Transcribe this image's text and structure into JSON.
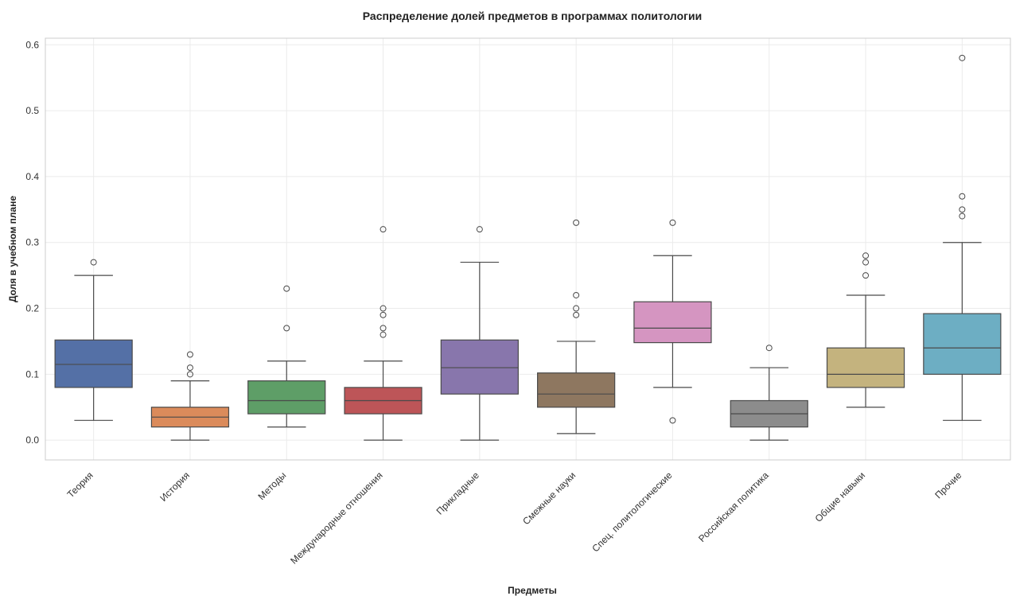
{
  "chart_data": {
    "type": "box",
    "title": "Распределение долей предметов в программах политологии",
    "xlabel": "Предметы",
    "ylabel": "Доля в учебном плане",
    "ylim": [
      -0.03,
      0.61
    ],
    "yticks": [
      0.0,
      0.1,
      0.2,
      0.3,
      0.4,
      0.5,
      0.6
    ],
    "ytick_labels": [
      "0.0",
      "0.1",
      "0.2",
      "0.3",
      "0.4",
      "0.5",
      "0.6"
    ],
    "grid": true,
    "categories": [
      "Теория",
      "История",
      "Методы",
      "Международные отношения",
      "Прикладные",
      "Смежные науки",
      "Спец. политологические",
      "Российская политика",
      "Общие навыки",
      "Прочие"
    ],
    "boxes": [
      {
        "category": "Теория",
        "whisker_low": 0.03,
        "q1": 0.08,
        "median": 0.115,
        "q3": 0.152,
        "whisker_high": 0.25,
        "outliers": [
          0.27
        ],
        "color": "#5470a6"
      },
      {
        "category": "История",
        "whisker_low": 0.0,
        "q1": 0.02,
        "median": 0.035,
        "q3": 0.05,
        "whisker_high": 0.09,
        "outliers": [
          0.1,
          0.11,
          0.13
        ],
        "color": "#db8b5b"
      },
      {
        "category": "Методы",
        "whisker_low": 0.02,
        "q1": 0.04,
        "median": 0.06,
        "q3": 0.09,
        "whisker_high": 0.12,
        "outliers": [
          0.17,
          0.23
        ],
        "color": "#5e9e67"
      },
      {
        "category": "Международные отношения",
        "whisker_low": 0.0,
        "q1": 0.04,
        "median": 0.06,
        "q3": 0.08,
        "whisker_high": 0.12,
        "outliers": [
          0.16,
          0.17,
          0.19,
          0.2,
          0.32
        ],
        "color": "#bd5558"
      },
      {
        "category": "Прикладные",
        "whisker_low": 0.0,
        "q1": 0.07,
        "median": 0.11,
        "q3": 0.152,
        "whisker_high": 0.27,
        "outliers": [
          0.32
        ],
        "color": "#8876ac"
      },
      {
        "category": "Смежные науки",
        "whisker_low": 0.01,
        "q1": 0.05,
        "median": 0.07,
        "q3": 0.102,
        "whisker_high": 0.15,
        "outliers": [
          0.19,
          0.2,
          0.22,
          0.33
        ],
        "color": "#8e7760"
      },
      {
        "category": "Спец. политологические",
        "whisker_low": 0.08,
        "q1": 0.148,
        "median": 0.17,
        "q3": 0.21,
        "whisker_high": 0.28,
        "outliers": [
          0.03,
          0.33
        ],
        "color": "#d595c1"
      },
      {
        "category": "Российская политика",
        "whisker_low": 0.0,
        "q1": 0.02,
        "median": 0.04,
        "q3": 0.06,
        "whisker_high": 0.11,
        "outliers": [
          0.14
        ],
        "color": "#8c8c8c"
      },
      {
        "category": "Общие навыки",
        "whisker_low": 0.05,
        "q1": 0.08,
        "median": 0.1,
        "q3": 0.14,
        "whisker_high": 0.22,
        "outliers": [
          0.25,
          0.27,
          0.28
        ],
        "color": "#c4b37e"
      },
      {
        "category": "Прочие",
        "whisker_low": 0.03,
        "q1": 0.1,
        "median": 0.14,
        "q3": 0.192,
        "whisker_high": 0.3,
        "outliers": [
          0.34,
          0.35,
          0.37,
          0.58
        ],
        "color": "#6daec3"
      }
    ]
  }
}
